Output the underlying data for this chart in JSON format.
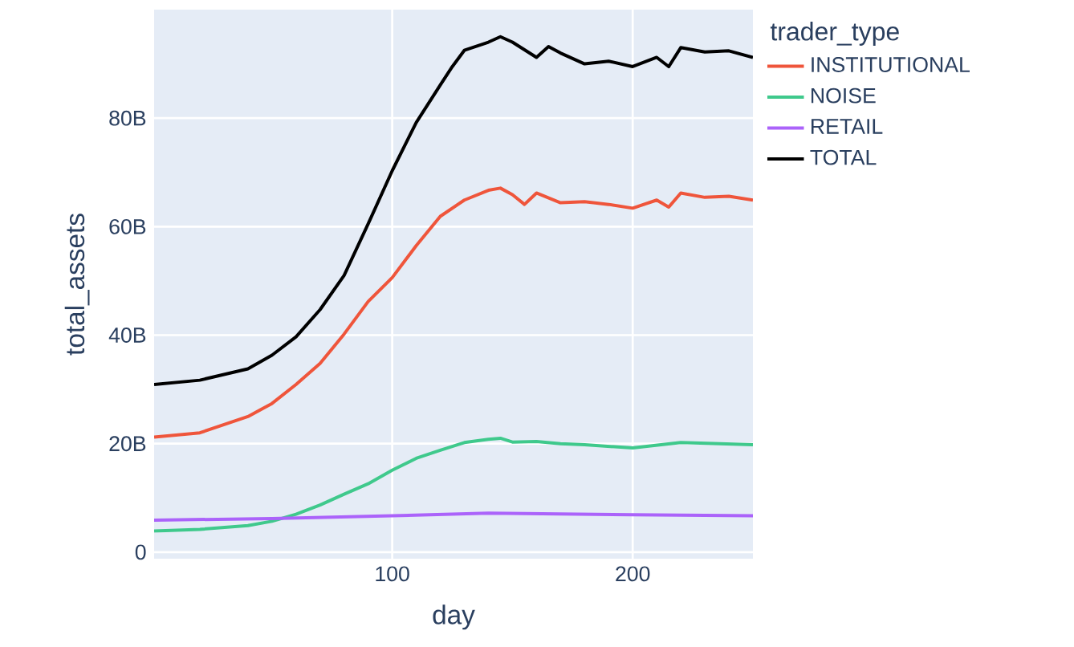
{
  "chart_data": {
    "type": "line",
    "xlabel": "day",
    "ylabel": "total_assets",
    "legend_title": "trader_type",
    "xlim": [
      1,
      250
    ],
    "xticks": [
      100,
      200
    ],
    "ylim": [
      -1.2,
      100
    ],
    "yticks": [
      0,
      {
        "value": 20,
        "label": "20B"
      },
      {
        "value": 40,
        "label": "40B"
      },
      {
        "value": 60,
        "label": "60B"
      },
      {
        "value": 80,
        "label": "80B"
      }
    ],
    "grid": true,
    "legend": "right",
    "marker": "none",
    "line_style": "solid",
    "series": [
      {
        "name": "INSTITUTIONAL",
        "color": "#ef553b",
        "x": [
          1,
          20,
          40,
          50,
          60,
          70,
          80,
          90,
          100,
          110,
          120,
          130,
          140,
          145,
          150,
          155,
          160,
          170,
          180,
          190,
          200,
          210,
          215,
          220,
          230,
          240,
          250
        ],
        "values": [
          21.2,
          22,
          25,
          27.4,
          30.9,
          34.8,
          40.2,
          46.2,
          50.6,
          56.5,
          61.9,
          64.9,
          66.7,
          67.1,
          65.9,
          64.1,
          66.2,
          64.4,
          64.6,
          64.1,
          63.4,
          64.9,
          63.6,
          66.2,
          65.4,
          65.6,
          64.9
        ]
      },
      {
        "name": "NOISE",
        "color": "#3fc98c",
        "x": [
          1,
          20,
          40,
          50,
          60,
          70,
          80,
          90,
          100,
          110,
          120,
          130,
          140,
          145,
          150,
          160,
          170,
          180,
          200,
          220,
          250
        ],
        "values": [
          3.9,
          4.2,
          4.9,
          5.7,
          7,
          8.7,
          10.7,
          12.6,
          15.1,
          17.3,
          18.8,
          20.2,
          20.8,
          21,
          20.3,
          20.4,
          20,
          19.8,
          19.2,
          20.2,
          19.8
        ]
      },
      {
        "name": "RETAIL",
        "color": "#ab63fa",
        "x": [
          1,
          50,
          100,
          140,
          200,
          250
        ],
        "values": [
          5.9,
          6.2,
          6.7,
          7.2,
          6.9,
          6.7
        ]
      },
      {
        "name": "TOTAL",
        "color": "#000000",
        "x": [
          1,
          20,
          40,
          50,
          60,
          70,
          80,
          90,
          100,
          110,
          120,
          125,
          130,
          140,
          145,
          150,
          160,
          165,
          170,
          180,
          190,
          200,
          210,
          215,
          220,
          230,
          240,
          250
        ],
        "values": [
          30.9,
          31.7,
          33.8,
          36.3,
          39.7,
          44.7,
          51,
          60.5,
          70.3,
          79.2,
          86.1,
          89.5,
          92.5,
          94,
          95,
          94,
          91.2,
          93.2,
          92,
          90,
          90.5,
          89.5,
          91.2,
          89.5,
          93,
          92.2,
          92.4,
          91.2
        ]
      }
    ]
  }
}
